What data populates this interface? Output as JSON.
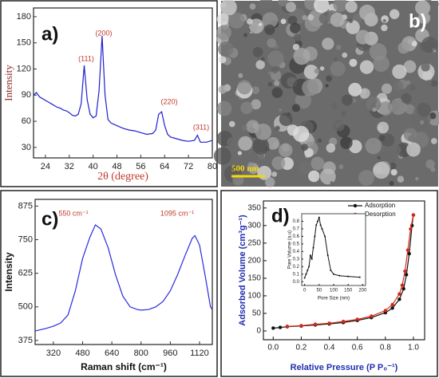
{
  "chart_data": [
    {
      "type": "line",
      "panel_label": "a)",
      "x_label": "2θ (degree)",
      "y_label": "Intensity",
      "color": "#1f1fd0",
      "x": [
        20,
        21,
        22,
        23,
        24,
        25,
        26,
        27,
        28,
        29,
        30,
        31,
        32,
        33,
        34,
        35,
        36,
        37,
        38,
        39,
        40,
        41,
        42,
        43,
        44,
        45,
        46,
        48,
        50,
        52,
        54,
        56,
        58,
        60,
        61,
        62,
        63,
        64,
        65,
        66,
        68,
        70,
        72,
        74,
        75,
        76,
        78,
        80
      ],
      "values": [
        90,
        93,
        88,
        86,
        84,
        82,
        80,
        78,
        76,
        75,
        73,
        72,
        70,
        67,
        66,
        68,
        80,
        124,
        85,
        68,
        64,
        66,
        95,
        158,
        90,
        62,
        58,
        55,
        52,
        50,
        49,
        47,
        45,
        46,
        50,
        68,
        71,
        55,
        45,
        42,
        40,
        38,
        37,
        38,
        44,
        36,
        36,
        38
      ],
      "xlim": [
        20,
        80
      ],
      "ylim": [
        18,
        190
      ],
      "xticks": [
        24,
        32,
        40,
        48,
        56,
        64,
        72,
        80
      ],
      "yticks": [
        30,
        60,
        90,
        120,
        150,
        180
      ],
      "annotations": [
        "(111)",
        "(200)",
        "(220)",
        "(311)"
      ]
    },
    {
      "type": "image",
      "panel_label": "b)",
      "scale_bar_label": "500 nm"
    },
    {
      "type": "line",
      "panel_label": "c)",
      "x_label": "Raman shift (cm⁻¹)",
      "y_label": "Intensity",
      "color": "#2a2ae0",
      "x": [
        220,
        280,
        320,
        360,
        400,
        440,
        480,
        520,
        550,
        580,
        620,
        660,
        700,
        740,
        780,
        800,
        840,
        880,
        920,
        960,
        1000,
        1040,
        1080,
        1095,
        1120,
        1150,
        1180,
        1190
      ],
      "values": [
        410,
        420,
        428,
        440,
        470,
        560,
        680,
        760,
        805,
        790,
        720,
        620,
        540,
        500,
        490,
        488,
        490,
        500,
        520,
        560,
        620,
        690,
        755,
        765,
        730,
        620,
        500,
        490
      ],
      "xlim": [
        220,
        1190
      ],
      "ylim": [
        360,
        900
      ],
      "xticks": [
        320,
        480,
        640,
        800,
        960,
        1120
      ],
      "yticks": [
        375,
        500,
        625,
        750,
        875
      ],
      "annotations": [
        "550 cm⁻¹",
        "1095 cm⁻¹"
      ]
    },
    {
      "type": "isotherm",
      "panel_label": "d)",
      "x_label": "Relative Pressure (P P₀⁻¹)",
      "y_label": "Adsorbed Volume (cm³g⁻¹)",
      "legend": "top-right",
      "series": [
        {
          "name": "Adsorption",
          "color": "#111111",
          "x": [
            0,
            0.05,
            0.1,
            0.2,
            0.3,
            0.4,
            0.5,
            0.6,
            0.7,
            0.8,
            0.85,
            0.9,
            0.93,
            0.95,
            0.97,
            0.99,
            1.0
          ],
          "values": [
            8,
            10,
            12,
            14,
            17,
            20,
            24,
            30,
            38,
            52,
            65,
            90,
            120,
            160,
            220,
            300,
            330
          ]
        },
        {
          "name": "Desorption",
          "color": "#d42a1a",
          "x": [
            1.0,
            0.98,
            0.96,
            0.94,
            0.92,
            0.9,
            0.85,
            0.8,
            0.7,
            0.6,
            0.5,
            0.4,
            0.3,
            0.2,
            0.1
          ],
          "values": [
            330,
            290,
            230,
            170,
            130,
            105,
            75,
            58,
            42,
            33,
            27,
            22,
            19,
            15,
            13
          ]
        }
      ],
      "xlim": [
        -0.07,
        1.08
      ],
      "ylim": [
        -25,
        370
      ],
      "xticks": [
        {
          "value": 0,
          "label": "0.0"
        },
        0.2,
        0.4,
        0.6,
        0.8,
        {
          "value": 1,
          "label": "1.0"
        }
      ],
      "yticks": [
        0,
        50,
        100,
        150,
        200,
        250,
        300,
        350
      ]
    },
    {
      "type": "inset",
      "x_label": "Pore Size (nm)",
      "y_label": "Pore Volume (a.u)",
      "color": "#111111",
      "x": [
        0,
        5,
        10,
        15,
        20,
        25,
        30,
        35,
        40,
        45,
        50,
        55,
        60,
        70,
        80,
        90,
        100,
        120,
        150,
        190
      ],
      "values": [
        0.05,
        0.1,
        0.15,
        0.2,
        0.35,
        0.3,
        0.45,
        0.6,
        0.75,
        0.8,
        0.85,
        0.75,
        0.7,
        0.6,
        0.35,
        0.15,
        0.1,
        0.08,
        0.07,
        0.06
      ],
      "xlim": [
        -10,
        210
      ],
      "ylim": [
        -0.05,
        0.9
      ],
      "xticks": [
        0,
        50,
        100,
        150,
        200
      ],
      "yticks": [
        {
          "value": 0,
          "label": "0.0"
        },
        0.1,
        0.2,
        0.3,
        0.4,
        0.5,
        0.6,
        0.7,
        0.8
      ]
    }
  ]
}
